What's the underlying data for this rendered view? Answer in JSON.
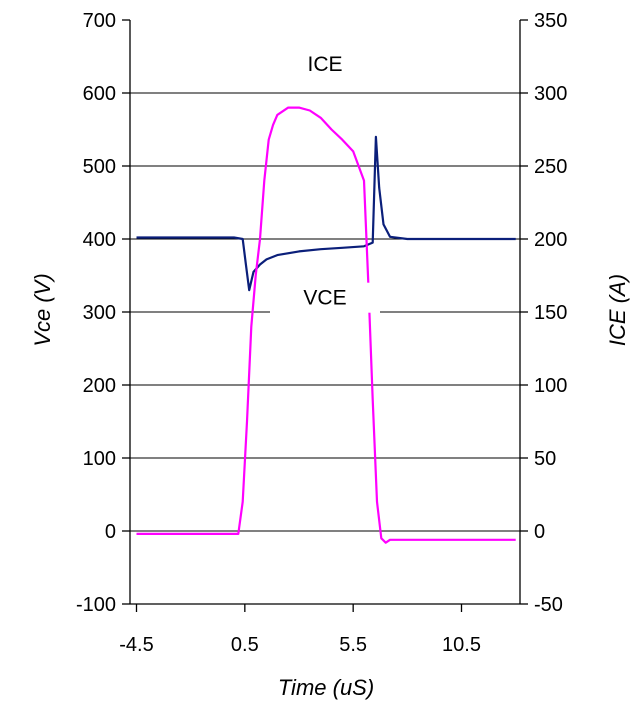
{
  "chart_data": {
    "type": "line",
    "xlabel": "Time (uS)",
    "ylabel_left": "Vce (V)",
    "ylabel_right": "ICE (A)",
    "xlim": [
      -4.8,
      13.2
    ],
    "x_ticks": [
      -4.5,
      0.5,
      5.5,
      10.5
    ],
    "x_tick_labels": [
      "-4.5",
      "0.5",
      "5.5",
      "10.5"
    ],
    "ylim_left": [
      -100,
      700
    ],
    "y_ticks_left": [
      -100,
      0,
      100,
      200,
      300,
      400,
      500,
      600,
      700
    ],
    "ylim_right": [
      -50,
      350
    ],
    "y_ticks_right": [
      -50,
      0,
      50,
      100,
      150,
      200,
      250,
      300,
      350
    ],
    "grid": "horizontal",
    "annotations": [
      {
        "text": "ICE",
        "x": 4.2,
        "y": 630,
        "axis": "left"
      },
      {
        "text": "VCE",
        "x": 4.2,
        "y": 310,
        "axis": "left"
      }
    ],
    "series": [
      {
        "name": "VCE",
        "axis": "left",
        "color": "#0b1f7a",
        "x": [
          -4.5,
          0.0,
          0.4,
          0.55,
          0.7,
          0.9,
          1.2,
          1.5,
          2.0,
          3.0,
          4.0,
          5.0,
          6.0,
          6.4,
          6.55,
          6.7,
          6.9,
          7.2,
          8.0,
          10.0,
          13.0
        ],
        "y": [
          402,
          402,
          400,
          365,
          330,
          355,
          365,
          372,
          378,
          383,
          386,
          388,
          390,
          395,
          540,
          470,
          420,
          403,
          400,
          400,
          400
        ]
      },
      {
        "name": "ICE",
        "axis": "right",
        "color": "#ff00ff",
        "x": [
          -4.5,
          0.0,
          0.2,
          0.4,
          0.6,
          0.8,
          1.0,
          1.2,
          1.4,
          1.6,
          1.8,
          2.0,
          2.5,
          3.0,
          3.5,
          4.0,
          4.5,
          5.0,
          5.5,
          6.0,
          6.2,
          6.4,
          6.6,
          6.8,
          7.0,
          7.2,
          8.0,
          10.0,
          13.0
        ],
        "y": [
          -2,
          -2,
          -2,
          20,
          75,
          140,
          175,
          200,
          240,
          268,
          278,
          285,
          290,
          290,
          288,
          283,
          275,
          268,
          260,
          240,
          170,
          90,
          20,
          -5,
          -8,
          -6,
          -6,
          -6,
          -6
        ]
      }
    ]
  }
}
